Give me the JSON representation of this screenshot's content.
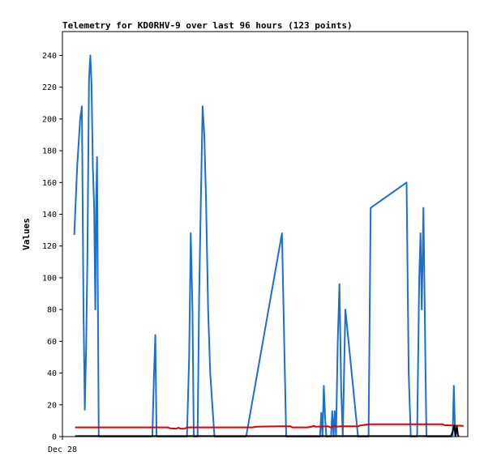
{
  "chart_data": {
    "type": "line",
    "title": "Telemetry for KD0RHV-9 over last 96 hours (123 points)",
    "xlabel": "",
    "ylabel": "Values",
    "xlim": [
      0,
      96
    ],
    "ylim": [
      0,
      255
    ],
    "yticks": [
      0,
      20,
      40,
      60,
      80,
      100,
      120,
      140,
      160,
      180,
      200,
      220,
      240
    ],
    "xtick_labels": [
      {
        "x": 0,
        "label": "Dec 28"
      }
    ],
    "grid": false,
    "legend": "none",
    "colors": {
      "series_blue": "#1a6fcf",
      "series_red": "#e00000",
      "series_black": "#000000",
      "frame": "#000000"
    },
    "series": [
      {
        "color": "#1a6fcf",
        "points": [
          [
            2.8,
            127
          ],
          [
            3.5,
            170
          ],
          [
            4.2,
            200
          ],
          [
            4.6,
            208
          ],
          [
            5.0,
            80
          ],
          [
            5.3,
            17
          ],
          [
            5.6,
            55
          ],
          [
            5.9,
            108
          ],
          [
            6.3,
            225
          ],
          [
            6.6,
            240
          ],
          [
            6.9,
            222
          ],
          [
            7.2,
            170
          ],
          [
            7.5,
            145
          ],
          [
            7.8,
            80
          ],
          [
            8.0,
            150
          ],
          [
            8.2,
            176
          ],
          [
            8.3,
            130
          ],
          [
            8.6,
            0
          ],
          [
            21.3,
            0
          ],
          [
            21.7,
            40
          ],
          [
            22.0,
            64
          ],
          [
            22.3,
            0
          ],
          [
            29.5,
            0
          ],
          [
            30.0,
            50
          ],
          [
            30.4,
            128
          ],
          [
            30.8,
            80
          ],
          [
            31.1,
            0
          ],
          [
            32.0,
            0
          ],
          [
            32.4,
            90
          ],
          [
            32.8,
            150
          ],
          [
            33.2,
            208
          ],
          [
            33.6,
            190
          ],
          [
            34.0,
            150
          ],
          [
            34.5,
            80
          ],
          [
            35.0,
            40
          ],
          [
            35.5,
            20
          ],
          [
            36.0,
            0
          ],
          [
            43.5,
            0
          ],
          [
            52.0,
            128
          ],
          [
            53.0,
            0
          ],
          [
            61.0,
            0
          ],
          [
            61.3,
            15
          ],
          [
            61.6,
            0
          ],
          [
            61.9,
            32
          ],
          [
            62.2,
            12
          ],
          [
            62.5,
            0
          ],
          [
            63.6,
            0
          ],
          [
            63.9,
            16
          ],
          [
            64.2,
            0
          ],
          [
            64.5,
            16
          ],
          [
            64.8,
            0
          ],
          [
            65.2,
            60
          ],
          [
            65.6,
            96
          ],
          [
            66.0,
            30
          ],
          [
            66.4,
            0
          ],
          [
            67.0,
            80
          ],
          [
            70.0,
            0
          ],
          [
            72.5,
            0
          ],
          [
            73.0,
            144
          ],
          [
            81.5,
            160
          ],
          [
            82.0,
            40
          ],
          [
            82.5,
            0
          ],
          [
            84.0,
            0
          ],
          [
            84.5,
            100
          ],
          [
            84.8,
            128
          ],
          [
            85.1,
            80
          ],
          [
            85.5,
            144
          ],
          [
            85.9,
            60
          ],
          [
            86.2,
            0
          ],
          [
            92.4,
            0
          ],
          [
            92.7,
            32
          ],
          [
            93.0,
            0
          ]
        ]
      },
      {
        "color": "#e00000",
        "points": [
          [
            3,
            5.8
          ],
          [
            25,
            5.8
          ],
          [
            25.5,
            5.2
          ],
          [
            27,
            5.0
          ],
          [
            27.5,
            5.6
          ],
          [
            28,
            5.0
          ],
          [
            29,
            5.0
          ],
          [
            29.5,
            5.8
          ],
          [
            45,
            5.8
          ],
          [
            46,
            6.2
          ],
          [
            51,
            6.5
          ],
          [
            54,
            6.5
          ],
          [
            54.5,
            5.8
          ],
          [
            58,
            5.8
          ],
          [
            59,
            6.2
          ],
          [
            59.5,
            6.8
          ],
          [
            60,
            6.2
          ],
          [
            63,
            6.5
          ],
          [
            63.5,
            5.8
          ],
          [
            64.5,
            6.8
          ],
          [
            65,
            6.2
          ],
          [
            66,
            6.5
          ],
          [
            70,
            6.5
          ],
          [
            70.5,
            7.0
          ],
          [
            72,
            7.5
          ],
          [
            73,
            7.8
          ],
          [
            90,
            7.8
          ],
          [
            90.5,
            7.2
          ],
          [
            95,
            6.8
          ]
        ]
      },
      {
        "color": "#000000",
        "points": [
          [
            3,
            0.3
          ],
          [
            92,
            0.3
          ],
          [
            92.4,
            3
          ],
          [
            92.8,
            7
          ],
          [
            93.1,
            0.5
          ],
          [
            93.4,
            6.5
          ],
          [
            93.7,
            0.3
          ],
          [
            94.0,
            0.3
          ]
        ]
      }
    ]
  }
}
